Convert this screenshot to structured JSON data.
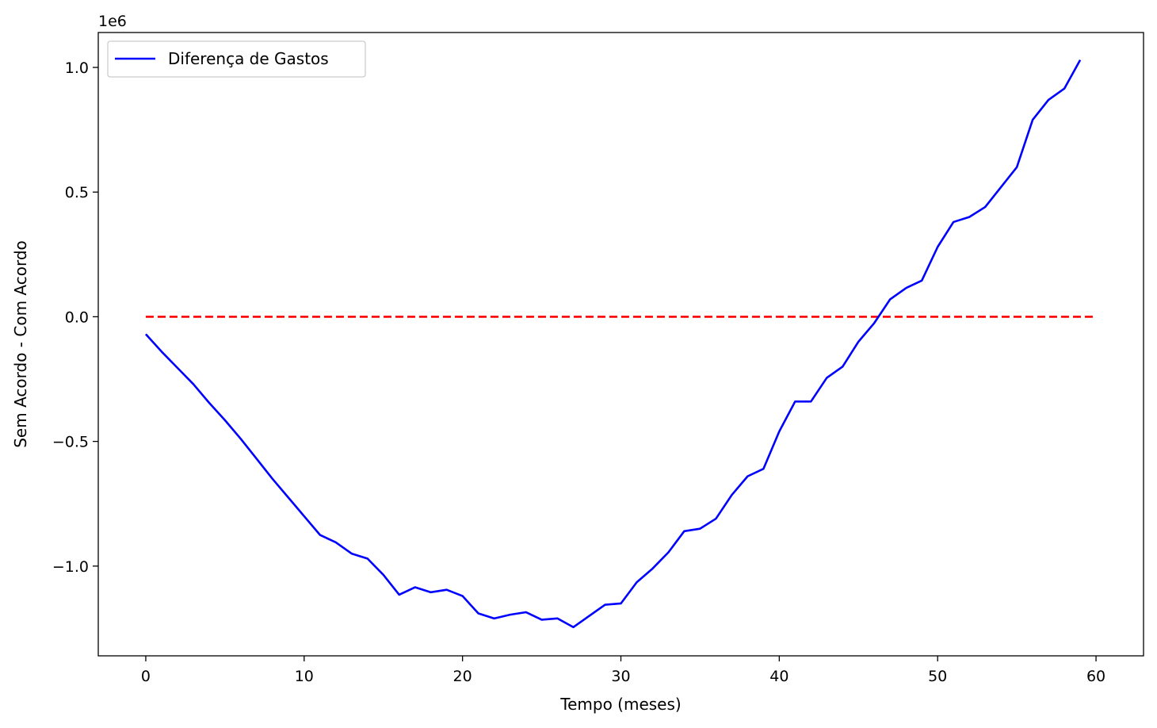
{
  "chart_data": {
    "type": "line",
    "title": "",
    "xlabel": "Tempo (meses)",
    "ylabel": "Sem Acordo - Com Acordo",
    "y_offset_text": "1e6",
    "xlim": [
      -3,
      63
    ],
    "ylim": [
      -1.36,
      1.14
    ],
    "x_ticks": [
      0,
      10,
      20,
      30,
      40,
      50,
      60
    ],
    "x_tick_labels": [
      "0",
      "10",
      "20",
      "30",
      "40",
      "50",
      "60"
    ],
    "y_ticks": [
      -1.0,
      -0.5,
      0.0,
      0.5,
      1.0
    ],
    "y_tick_labels": [
      "−1.0",
      "−0.5",
      "0.0",
      "0.5",
      "1.0"
    ],
    "grid": false,
    "legend_position": "upper-left",
    "series": [
      {
        "name": "Diferença de Gastos",
        "color": "#0000ff",
        "style": "solid",
        "x": [
          0,
          1,
          2,
          3,
          4,
          5,
          6,
          7,
          8,
          9,
          10,
          11,
          12,
          13,
          14,
          15,
          16,
          17,
          18,
          19,
          20,
          21,
          22,
          23,
          24,
          25,
          26,
          27,
          28,
          29,
          30,
          31,
          32,
          33,
          34,
          35,
          36,
          37,
          38,
          39,
          40,
          41,
          42,
          43,
          44,
          45,
          46,
          47,
          48,
          49,
          50,
          51,
          52,
          53,
          54,
          55,
          56,
          57,
          58,
          59
        ],
        "values": [
          -0.07,
          -0.14,
          -0.205,
          -0.27,
          -0.345,
          -0.415,
          -0.49,
          -0.57,
          -0.65,
          -0.725,
          -0.8,
          -0.875,
          -0.905,
          -0.95,
          -0.97,
          -1.035,
          -1.115,
          -1.085,
          -1.105,
          -1.095,
          -1.12,
          -1.19,
          -1.21,
          -1.195,
          -1.185,
          -1.215,
          -1.21,
          -1.245,
          -1.2,
          -1.155,
          -1.15,
          -1.065,
          -1.01,
          -0.945,
          -0.86,
          -0.85,
          -0.81,
          -0.715,
          -0.64,
          -0.61,
          -0.46,
          -0.34,
          -0.34,
          -0.245,
          -0.2,
          -0.1,
          -0.025,
          0.07,
          0.115,
          0.145,
          0.28,
          0.38,
          0.4,
          0.44,
          0.52,
          0.6,
          0.79,
          0.87,
          0.915,
          1.03
        ]
      },
      {
        "name": "",
        "color": "#ff0000",
        "style": "dashed",
        "x": [
          0,
          60
        ],
        "values": [
          0,
          0
        ]
      }
    ]
  }
}
